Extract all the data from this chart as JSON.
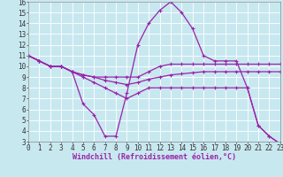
{
  "background_color": "#c8e8f0",
  "grid_color": "#ffffff",
  "line_color": "#9922aa",
  "linewidth": 0.9,
  "markersize": 3,
  "xlabel": "Windchill (Refroidissement éolien,°C)",
  "xlabel_fontsize": 6,
  "tick_fontsize": 5.5,
  "xlim": [
    0,
    23
  ],
  "ylim": [
    3,
    16
  ],
  "xticks": [
    0,
    1,
    2,
    3,
    4,
    5,
    6,
    7,
    8,
    9,
    10,
    11,
    12,
    13,
    14,
    15,
    16,
    17,
    18,
    19,
    20,
    21,
    22,
    23
  ],
  "yticks": [
    3,
    4,
    5,
    6,
    7,
    8,
    9,
    10,
    11,
    12,
    13,
    14,
    15,
    16
  ],
  "series": [
    {
      "x": [
        0,
        1,
        2,
        3,
        4,
        5,
        6,
        7,
        8,
        9,
        10,
        11,
        12,
        13,
        14,
        15,
        16,
        17,
        18,
        19,
        20,
        21,
        22,
        23
      ],
      "y": [
        11.0,
        10.5,
        10.0,
        10.0,
        9.5,
        6.5,
        5.5,
        3.5,
        3.5,
        7.5,
        12.0,
        14.0,
        15.2,
        16.0,
        15.0,
        13.5,
        11.0,
        10.5,
        10.5,
        10.5,
        8.0,
        4.5,
        3.5,
        2.8
      ]
    },
    {
      "x": [
        0,
        1,
        2,
        3,
        4,
        5,
        6,
        7,
        8,
        9,
        10,
        11,
        12,
        13,
        14,
        15,
        16,
        17,
        18,
        19,
        20,
        21,
        22,
        23
      ],
      "y": [
        11.0,
        10.5,
        10.0,
        10.0,
        9.5,
        9.2,
        9.0,
        9.0,
        9.0,
        9.0,
        9.0,
        9.5,
        10.0,
        10.2,
        10.2,
        10.2,
        10.2,
        10.2,
        10.2,
        10.2,
        10.2,
        10.2,
        10.2,
        10.2
      ]
    },
    {
      "x": [
        0,
        1,
        2,
        3,
        4,
        5,
        6,
        7,
        8,
        9,
        10,
        11,
        12,
        13,
        14,
        15,
        16,
        17,
        18,
        19,
        20,
        21,
        22,
        23
      ],
      "y": [
        11.0,
        10.5,
        10.0,
        10.0,
        9.5,
        9.0,
        8.5,
        8.0,
        7.5,
        7.0,
        7.5,
        8.0,
        8.0,
        8.0,
        8.0,
        8.0,
        8.0,
        8.0,
        8.0,
        8.0,
        8.0,
        4.5,
        3.5,
        2.8
      ]
    },
    {
      "x": [
        0,
        1,
        2,
        3,
        4,
        5,
        6,
        7,
        8,
        9,
        10,
        11,
        12,
        13,
        14,
        15,
        16,
        17,
        18,
        19,
        20,
        21,
        22,
        23
      ],
      "y": [
        11.0,
        10.5,
        10.0,
        10.0,
        9.5,
        9.2,
        9.0,
        8.7,
        8.5,
        8.3,
        8.5,
        8.8,
        9.0,
        9.2,
        9.3,
        9.4,
        9.5,
        9.5,
        9.5,
        9.5,
        9.5,
        9.5,
        9.5,
        9.5
      ]
    }
  ]
}
